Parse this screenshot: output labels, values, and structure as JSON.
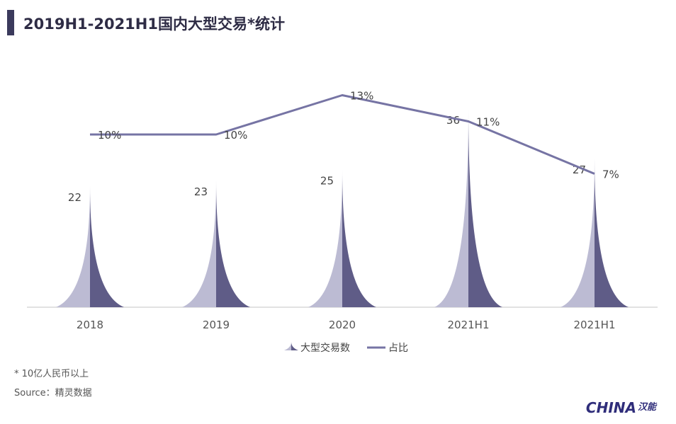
{
  "header": {
    "title": "2019H1-2021H1国内大型交易*统计"
  },
  "chart_data": {
    "type": "bar",
    "categories": [
      "2018",
      "2019",
      "2020",
      "2021H1",
      "2021H1"
    ],
    "series": [
      {
        "name": "大型交易数",
        "type": "bar",
        "values": [
          22,
          23,
          25,
          36,
          27
        ],
        "labels": [
          "22",
          "23",
          "25",
          "36",
          "27"
        ]
      },
      {
        "name": "占比",
        "type": "line",
        "values": [
          10,
          10,
          13,
          11,
          7
        ],
        "labels": [
          "10%",
          "10%",
          "13%",
          "11%",
          "7%"
        ]
      }
    ],
    "legend_position": "bottom",
    "grid": false,
    "colors": {
      "bar_light": "#bcbbd3",
      "bar_dark": "#5f5c87",
      "line": "#7674a4",
      "axis": "#d8d8d8"
    }
  },
  "footnotes": {
    "note": "* 10亿人民币以上",
    "source": "Source：精灵数据"
  },
  "logo": {
    "text": "HINA",
    "mark": "汉能"
  }
}
